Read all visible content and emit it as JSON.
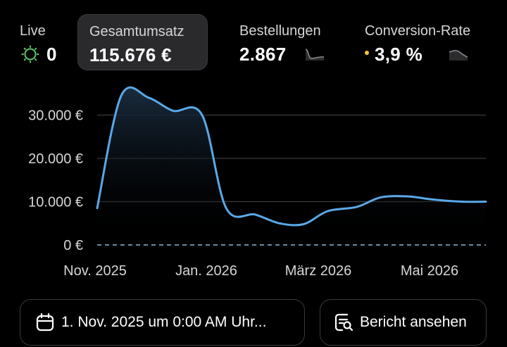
{
  "metrics": {
    "live": {
      "label": "Live",
      "value": "0",
      "icon": "live-sun-icon"
    },
    "total_sales": {
      "label": "Gesamtumsatz",
      "value": "115.676 €"
    },
    "orders": {
      "label": "Bestellungen",
      "value": "2.867",
      "icon": "sparkline-icon"
    },
    "conversion": {
      "label": "Conversion-Rate",
      "value": "3,9 %",
      "icon": "sparkline-icon"
    }
  },
  "chart_data": {
    "type": "area",
    "x": [
      "2025-11-01",
      "2025-11-15",
      "2025-12-01",
      "2025-12-15",
      "2026-01-01",
      "2026-01-15",
      "2026-02-01",
      "2026-02-15",
      "2026-03-01",
      "2026-03-15",
      "2026-04-01",
      "2026-04-15",
      "2026-05-01",
      "2026-05-15",
      "2026-06-01",
      "2026-06-15"
    ],
    "values": [
      8500,
      34500,
      34000,
      31000,
      30000,
      8500,
      7000,
      5000,
      4800,
      7800,
      8800,
      11000,
      11200,
      10500,
      10000,
      10000
    ],
    "yticks": [
      0,
      10000,
      20000,
      30000
    ],
    "ytick_labels": [
      "0 €",
      "10.000 €",
      "20.000 €",
      "30.000 €"
    ],
    "xtick_labels": [
      "Nov. 2025",
      "Jan. 2026",
      "März 2026",
      "Mai 2026"
    ],
    "ylim": [
      0,
      36000
    ],
    "grid": true,
    "colors": {
      "line": "#5aa8e8",
      "fill": "#1a2c3f",
      "grid": "#3a3a3c",
      "zero": "#6e8aa6"
    }
  },
  "actions": {
    "date_range": "1. Nov. 2025 um 0:00 AM Uhr...",
    "report": "Bericht ansehen"
  }
}
